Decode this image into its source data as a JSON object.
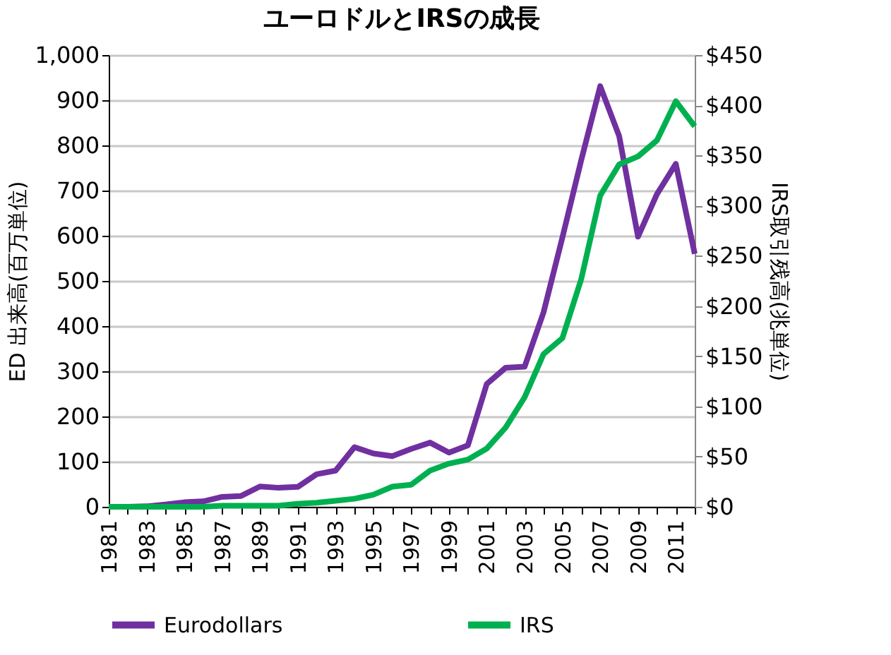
{
  "chart_data": {
    "type": "line",
    "title": "ユーロドルとIRSの成長",
    "categories": [
      "1981",
      null,
      "1983",
      null,
      "1985",
      null,
      "1987",
      null,
      "1989",
      null,
      "1991",
      null,
      "1993",
      null,
      "1995",
      null,
      "1997",
      null,
      "1999",
      null,
      "2001",
      null,
      "2003",
      null,
      "2005",
      null,
      "2007",
      null,
      "2009",
      null,
      "2011",
      null
    ],
    "series": [
      {
        "name": "Eurodollars",
        "color": "#7030a0",
        "values": [
          0,
          0,
          1,
          5,
          10,
          12,
          22,
          24,
          45,
          42,
          44,
          72,
          80,
          132,
          118,
          112,
          128,
          142,
          120,
          136,
          272,
          308,
          310,
          430,
          596,
          768,
          931,
          821,
          598,
          692,
          759,
          560
        ]
      },
      {
        "name": "IRS",
        "color": "#00b050",
        "axis": "y2",
        "values": [
          0,
          0,
          0,
          0,
          0,
          0,
          1,
          1,
          1,
          1,
          3,
          4,
          6,
          8,
          12,
          20,
          22,
          36,
          43,
          47,
          58,
          79,
          109,
          152,
          168,
          227,
          310,
          341,
          349,
          365,
          404,
          379
        ]
      }
    ],
    "ylabel": "ED 出来高(百万単位)",
    "y2label": "IRS取引残高(兆単位)",
    "ylim": [
      0,
      1000
    ],
    "yticks": [
      0,
      {
        "value": 100,
        "label": "100"
      },
      200,
      300,
      400,
      500,
      600,
      700,
      800,
      900,
      {
        "value": 1000,
        "label": "1,000"
      }
    ],
    "y2lim": [
      0,
      450
    ],
    "y2ticks": [
      {
        "value": 0,
        "label": "$0"
      },
      {
        "value": 50,
        "label": "$50"
      },
      {
        "value": 100,
        "label": "$100"
      },
      {
        "value": 150,
        "label": "$150"
      },
      {
        "value": 200,
        "label": "$200"
      },
      {
        "value": 250,
        "label": "$250"
      },
      {
        "value": 300,
        "label": "$300"
      },
      {
        "value": 350,
        "label": "$350"
      },
      {
        "value": 400,
        "label": "$400"
      },
      {
        "value": 450,
        "label": "$450"
      }
    ],
    "grid": "y",
    "legend": "bottom",
    "marker": "none",
    "line_style": "solid"
  }
}
